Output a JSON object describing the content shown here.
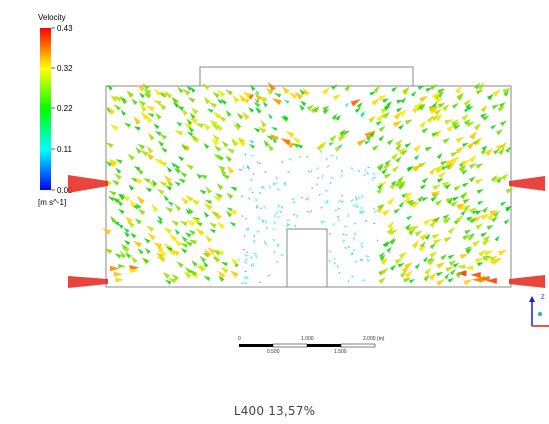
{
  "legend": {
    "title": "Velocity",
    "ticks": [
      "0.43",
      "0.32",
      "0.22",
      "0.11",
      "0.00"
    ],
    "unit": "[m s^-1]",
    "min": 0.0,
    "max": 0.43
  },
  "scale_bar": {
    "top_labels": [
      "0",
      "1.000",
      "2.000 (m)"
    ],
    "bottom_labels": [
      "0.500",
      "1.500"
    ]
  },
  "caption": "L400 13,57%",
  "colors": {
    "outline": "#8a8a8a",
    "scale_dark": "#000000",
    "scale_light": "#ffffff",
    "axis_z": "#1a1adf",
    "axis_x": "#d62020",
    "axis_y": "#20b3c9"
  },
  "icons": [
    "velocity-vector-glyph",
    "axis-triad-icon"
  ]
}
